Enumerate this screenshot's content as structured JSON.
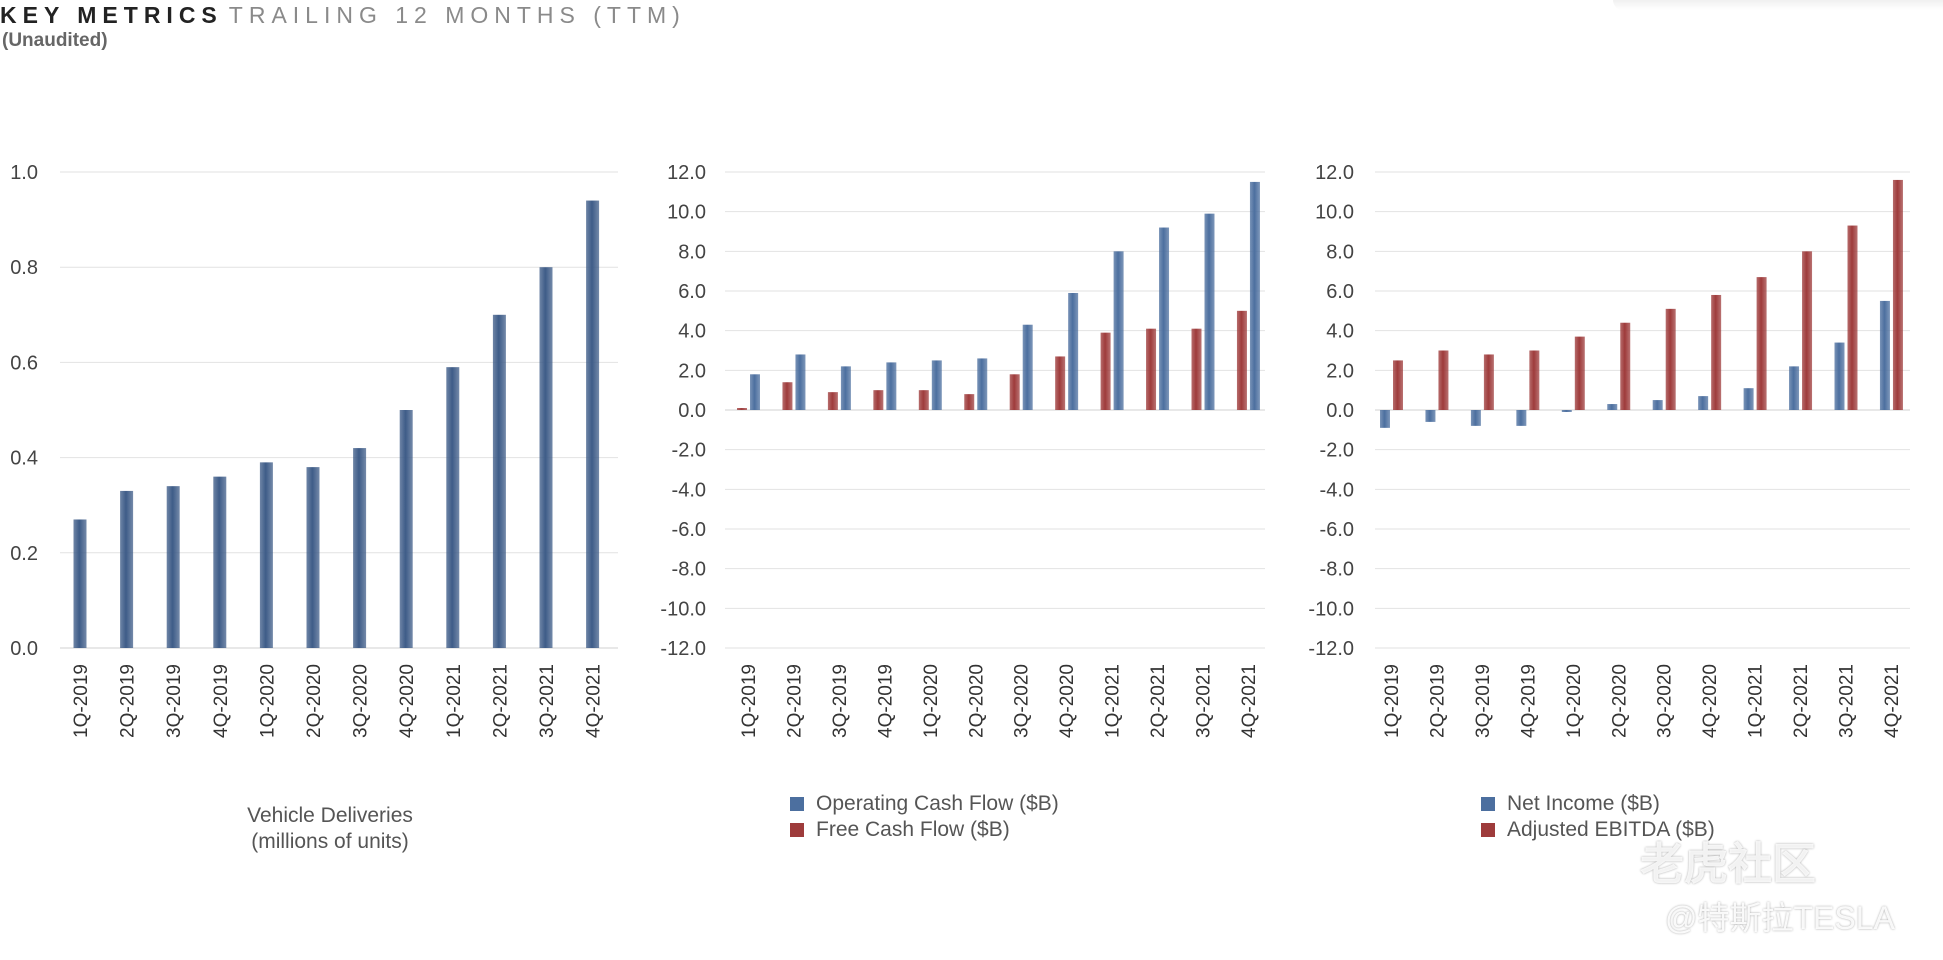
{
  "header": {
    "title_strong": "KEY METRICS",
    "title_light": "TRAILING 12 MONTHS (TTM)",
    "subtitle": "(Unaudited)"
  },
  "watermark": {
    "line1": "老虎社区",
    "line2": "@特斯拉TESLA"
  },
  "colors": {
    "blue": "#4c6f9f",
    "red": "#9e3b3b",
    "grid": "#e2e2e2",
    "tick_text": "#444444"
  },
  "chart_data": [
    {
      "type": "bar",
      "caption": [
        "Vehicle Deliveries",
        "(millions of units)"
      ],
      "categories": [
        "1Q-2019",
        "2Q-2019",
        "3Q-2019",
        "4Q-2019",
        "1Q-2020",
        "2Q-2020",
        "3Q-2020",
        "4Q-2020",
        "1Q-2021",
        "2Q-2021",
        "3Q-2021",
        "4Q-2021"
      ],
      "ylim": [
        0,
        1.0
      ],
      "yticks": [
        "0.0",
        "0.2",
        "0.4",
        "0.6",
        "0.8",
        "1.0"
      ],
      "series": [
        {
          "values": [
            0.27,
            0.33,
            0.34,
            0.36,
            0.39,
            0.38,
            0.42,
            0.5,
            0.59,
            0.7,
            0.8,
            0.94
          ]
        }
      ],
      "grid": true
    },
    {
      "type": "bar",
      "categories": [
        "1Q-2019",
        "2Q-2019",
        "3Q-2019",
        "4Q-2019",
        "1Q-2020",
        "2Q-2020",
        "3Q-2020",
        "4Q-2020",
        "1Q-2021",
        "2Q-2021",
        "3Q-2021",
        "4Q-2021"
      ],
      "ylim": [
        -12.0,
        12.0
      ],
      "yticks": [
        "-12.0",
        "-10.0",
        "-8.0",
        "-6.0",
        "-4.0",
        "-2.0",
        "0.0",
        "2.0",
        "4.0",
        "6.0",
        "8.0",
        "10.0",
        "12.0"
      ],
      "series": [
        {
          "name": "Free Cash Flow ($B)",
          "values": [
            0.1,
            1.4,
            0.9,
            1.0,
            1.0,
            0.8,
            1.8,
            2.7,
            3.9,
            4.1,
            4.1,
            5.0
          ]
        },
        {
          "name": "Operating Cash Flow ($B)",
          "values": [
            1.8,
            2.8,
            2.2,
            2.4,
            2.5,
            2.6,
            4.3,
            5.9,
            8.0,
            9.2,
            9.9,
            11.5
          ]
        }
      ],
      "legend": [
        "Operating Cash Flow ($B)",
        "Free Cash Flow ($B)"
      ],
      "legend_position": "bottom",
      "grid": true
    },
    {
      "type": "bar",
      "categories": [
        "1Q-2019",
        "2Q-2019",
        "3Q-2019",
        "4Q-2019",
        "1Q-2020",
        "2Q-2020",
        "3Q-2020",
        "4Q-2020",
        "1Q-2021",
        "2Q-2021",
        "3Q-2021",
        "4Q-2021"
      ],
      "ylim": [
        -12.0,
        12.0
      ],
      "yticks": [
        "-12.0",
        "-10.0",
        "-8.0",
        "-6.0",
        "-4.0",
        "-2.0",
        "0.0",
        "2.0",
        "4.0",
        "6.0",
        "8.0",
        "10.0",
        "12.0"
      ],
      "series": [
        {
          "name": "Net Income ($B)",
          "values": [
            -0.9,
            -0.6,
            -0.8,
            -0.8,
            -0.1,
            0.3,
            0.5,
            0.7,
            1.1,
            2.2,
            3.4,
            5.5
          ]
        },
        {
          "name": "Adjusted EBITDA ($B)",
          "values": [
            2.5,
            3.0,
            2.8,
            3.0,
            3.7,
            4.4,
            5.1,
            5.8,
            6.7,
            8.0,
            9.3,
            11.6
          ]
        }
      ],
      "legend": [
        "Net Income ($B)",
        "Adjusted EBITDA ($B)"
      ],
      "legend_position": "bottom",
      "grid": true
    }
  ]
}
